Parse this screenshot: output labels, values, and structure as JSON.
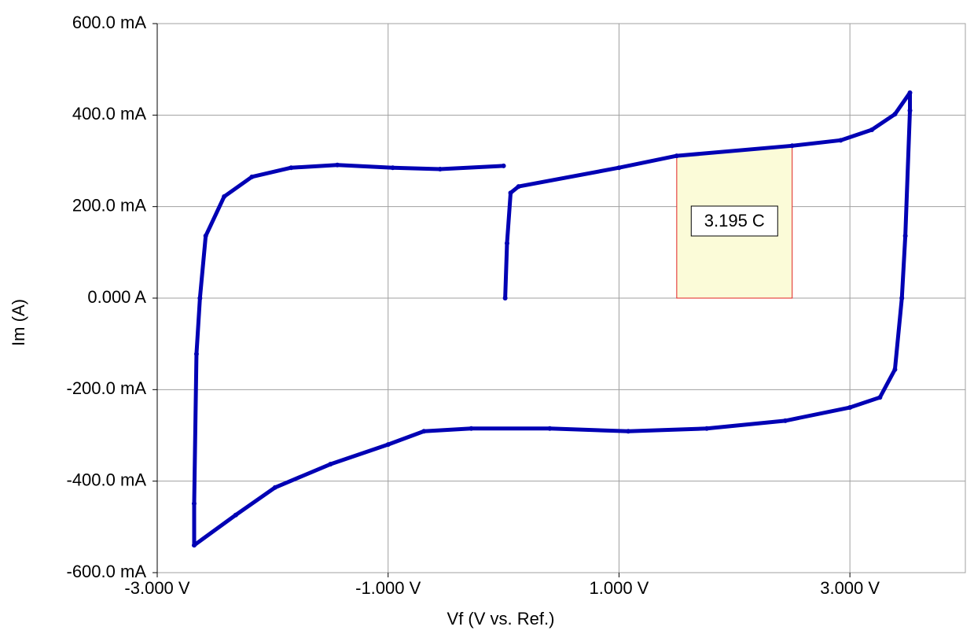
{
  "chart_data": {
    "type": "line",
    "xlabel": "Vf (V vs. Ref.)",
    "ylabel": "Im (A)",
    "xlim": [
      -3,
      4
    ],
    "ylim": [
      -0.6,
      0.6
    ],
    "xticks": [
      {
        "value": -3,
        "label": "-3.000 V"
      },
      {
        "value": -1,
        "label": "-1.000 V"
      },
      {
        "value": 1,
        "label": "1.000 V"
      },
      {
        "value": 3,
        "label": "3.000 V"
      }
    ],
    "yticks": [
      {
        "value": 0.6,
        "label": "600.0 mA"
      },
      {
        "value": 0.4,
        "label": "400.0 mA"
      },
      {
        "value": 0.2,
        "label": "200.0 mA"
      },
      {
        "value": 0,
        "label": "0.000 A"
      },
      {
        "value": -0.2,
        "label": "-200.0 mA"
      },
      {
        "value": -0.4,
        "label": "-400.0 mA"
      },
      {
        "value": -0.6,
        "label": "-600.0 mA"
      }
    ],
    "grid": true,
    "series": [
      {
        "color": "#0000b4",
        "x": [
          0.014,
          0.03,
          0.061,
          0.13,
          1.0,
          1.5,
          2.5,
          2.92,
          3.19,
          3.39,
          3.52,
          3.52,
          3.48,
          3.45,
          3.39,
          3.26,
          3.0,
          2.44,
          1.76,
          1.08,
          0.4,
          -0.28,
          -0.69,
          -1.0,
          -1.5,
          -1.98,
          -2.32,
          -2.68,
          -2.68,
          -2.66,
          -2.63,
          -2.58,
          -2.42,
          -2.18,
          -1.84,
          -1.44,
          -0.96,
          -0.55,
          0.0
        ],
        "values": [
          0,
          0.12,
          0.23,
          0.244,
          0.285,
          0.311,
          0.333,
          0.345,
          0.368,
          0.402,
          0.449,
          0.41,
          0.136,
          0,
          -0.156,
          -0.217,
          -0.239,
          -0.268,
          -0.285,
          -0.291,
          -0.285,
          -0.285,
          -0.291,
          -0.32,
          -0.363,
          -0.414,
          -0.474,
          -0.54,
          -0.449,
          -0.122,
          0,
          0.136,
          0.222,
          0.265,
          0.285,
          0.291,
          0.285,
          0.282,
          0.289
        ]
      }
    ],
    "annotation": {
      "text": "3.195 C",
      "x_range": [
        1.5,
        2.5
      ]
    }
  }
}
